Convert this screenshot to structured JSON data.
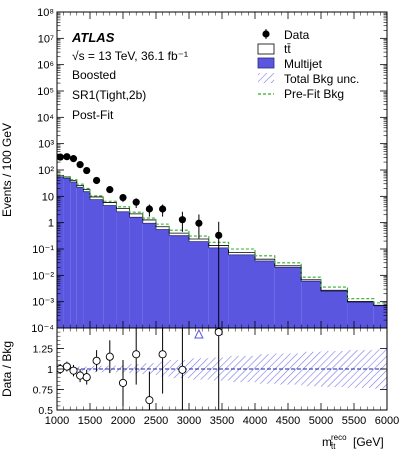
{
  "chart_data": {
    "type": "histogram",
    "top_panel": {
      "ylabel": "Events / 100 GeV",
      "yscale": "log",
      "ylim": [
        0.0001,
        100000000
      ],
      "ytick_labels": [
        "10⁻⁴",
        "10⁻³",
        "10⁻²",
        "10⁻¹",
        "1",
        "10",
        "10²",
        "10³",
        "10⁴",
        "10⁵",
        "10⁶",
        "10⁷",
        "10⁸"
      ],
      "ytick_values": [
        0.0001,
        0.001,
        0.01,
        0.1,
        1,
        10,
        100,
        1000,
        10000,
        100000,
        1000000,
        10000000,
        100000000
      ],
      "atlas_label": "ATLAS",
      "annotations": [
        "√s = 13 TeV, 36.1 fb⁻¹",
        "Boosted",
        "SR1(Tight,2b)",
        "Post-Fit"
      ],
      "legend": {
        "placement": "top-right",
        "entries": [
          {
            "label": "Data",
            "marker": "point"
          },
          {
            "label": "tt̄",
            "marker": "box-white"
          },
          {
            "label": "Multijet",
            "marker": "box-filled"
          },
          {
            "label": "Total Bkg unc.",
            "marker": "box-hatched"
          },
          {
            "label": "Pre-Fit Bkg",
            "marker": "dashed-line"
          }
        ]
      },
      "series": [
        {
          "name": "Multijet",
          "values": [
            55,
            48,
            35,
            22,
            15,
            7.5,
            4.5,
            2.6,
            1.6,
            0.95,
            0.55,
            0.32,
            0.19,
            0.11,
            0.06,
            0.035,
            0.02,
            0.006,
            0.0025,
            0.00095,
            0.0007
          ]
        },
        {
          "name": "tt̄",
          "values": [
            6,
            6,
            5,
            4,
            3,
            2,
            1.3,
            0.9,
            0.55,
            0.32,
            0.15,
            0.08,
            0.05,
            0.025,
            0.013,
            0.006,
            0.003,
            0.0008,
            0.0002,
            6e-05,
            3e-05
          ]
        },
        {
          "name": "Pre-Fit Bkg",
          "values": [
            62,
            56,
            43,
            29,
            20,
            10.5,
            6.5,
            4,
            2.5,
            1.5,
            0.88,
            0.52,
            0.31,
            0.18,
            0.1,
            0.055,
            0.03,
            0.0085,
            0.0036,
            0.0013,
            0.0009
          ]
        }
      ],
      "data_points": {
        "name": "Data",
        "x": [
          1050,
          1150,
          1250,
          1350,
          1450,
          1600,
          1800,
          2000,
          2200,
          2400,
          2600,
          2900,
          3150,
          3450
        ],
        "y": [
          310,
          320,
          270,
          160,
          95,
          40,
          18,
          9,
          6,
          3.3,
          3.3,
          1.3,
          0.95,
          0.33
        ],
        "yerr_low": [
          20,
          20,
          18,
          14,
          10,
          6.5,
          4.3,
          3,
          2.4,
          1.6,
          1.6,
          0.85,
          0.7,
          0.33
        ],
        "yerr_high": [
          20,
          20,
          18,
          14,
          10,
          6.5,
          4.3,
          3,
          2.4,
          1.6,
          1.6,
          1.3,
          1.1,
          0.75
        ]
      }
    },
    "ratio_panel": {
      "ylabel": "Data / Bkg",
      "ylim": [
        0.5,
        1.5
      ],
      "ytick_labels": [
        "0.5",
        "0.75",
        "1",
        "1.25"
      ],
      "ytick_values": [
        0.5,
        0.75,
        1,
        1.25
      ],
      "unc_band_halfwidth": [
        0.02,
        0.02,
        0.02,
        0.03,
        0.03,
        0.04,
        0.04,
        0.05,
        0.06,
        0.07,
        0.09,
        0.11,
        0.13,
        0.14,
        0.16,
        0.18,
        0.19,
        0.21,
        0.22,
        0.23,
        0.24
      ],
      "points": {
        "x": [
          1050,
          1150,
          1250,
          1350,
          1450,
          1600,
          1800,
          2000,
          2200,
          2400,
          2600,
          2900,
          3450
        ],
        "y": [
          1.0,
          1.03,
          0.98,
          0.92,
          0.9,
          1.1,
          1.15,
          0.83,
          1.18,
          0.62,
          1.18,
          0.99,
          1.45
        ],
        "yerr": [
          0.06,
          0.06,
          0.07,
          0.08,
          0.09,
          0.13,
          0.2,
          0.28,
          0.37,
          0.35,
          0.48,
          0.62,
          1.0
        ]
      },
      "off_scale_arrow_x": 3150
    },
    "x": {
      "bin_edges": [
        1000,
        1100,
        1200,
        1300,
        1400,
        1500,
        1700,
        1900,
        2100,
        2300,
        2500,
        2700,
        3000,
        3300,
        3600,
        4000,
        4300,
        4700,
        5000,
        5400,
        5800,
        6000
      ],
      "xlim": [
        1000,
        6000
      ],
      "tick_labels": [
        "1000",
        "1500",
        "2000",
        "2500",
        "3000",
        "3500",
        "4000",
        "4500",
        "5000",
        "5500",
        "6000"
      ],
      "label_main": "m",
      "label_sub": "t̄t",
      "label_sup": "reco",
      "label_unit": "[GeV]"
    },
    "colors": {
      "multijet": "#5a56e0",
      "multijet_edge": "#2a2a7a",
      "prefit": "#33aa33",
      "hatch": "#7a78ea",
      "ratio_line": "#2222aa"
    }
  }
}
